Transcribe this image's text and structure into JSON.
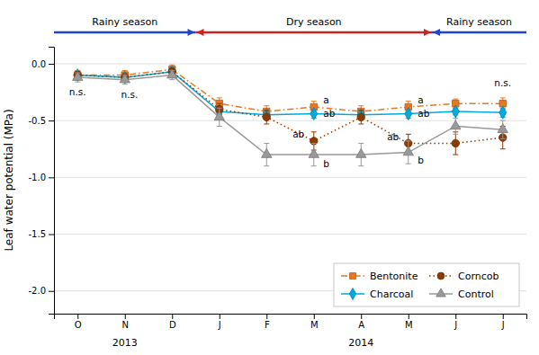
{
  "chart_data": {
    "type": "line",
    "y_label": "Leaf water potential (MPa)",
    "categories": [
      "O",
      "N",
      "D",
      "J",
      "F",
      "M",
      "A",
      "M",
      "J",
      "J"
    ],
    "series": [
      {
        "name": "Bentonite",
        "color": "#E87722",
        "marker": "square",
        "line_style": "dashdot",
        "values": [
          -0.1,
          -0.1,
          -0.05,
          -0.35,
          -0.42,
          -0.38,
          -0.42,
          -0.38,
          -0.35,
          -0.35
        ],
        "errors": [
          0.04,
          0.04,
          0.04,
          0.05,
          0.05,
          0.05,
          0.05,
          0.05,
          0.04,
          0.05
        ]
      },
      {
        "name": "Charcoal",
        "color": "#00AADD",
        "marker": "diamond",
        "line_style": "solid",
        "values": [
          -0.1,
          -0.12,
          -0.07,
          -0.42,
          -0.45,
          -0.44,
          -0.45,
          -0.44,
          -0.42,
          -0.43
        ],
        "errors": [
          0.03,
          0.03,
          0.03,
          0.04,
          0.04,
          0.04,
          0.04,
          0.04,
          0.03,
          0.04
        ]
      },
      {
        "name": "Corncob",
        "color": "#8B3A00",
        "marker": "circle",
        "line_style": "dotted",
        "values": [
          -0.1,
          -0.12,
          -0.07,
          -0.4,
          -0.47,
          -0.68,
          -0.47,
          -0.7,
          -0.7,
          -0.65
        ],
        "errors": [
          0.03,
          0.03,
          0.03,
          0.05,
          0.06,
          0.08,
          0.06,
          0.08,
          0.1,
          0.1
        ]
      },
      {
        "name": "Control",
        "color": "#999999",
        "marker": "triangle",
        "line_style": "solid",
        "values": [
          -0.12,
          -0.14,
          -0.1,
          -0.47,
          -0.8,
          -0.8,
          -0.8,
          -0.78,
          -0.55,
          -0.58
        ],
        "errors": [
          0.04,
          0.04,
          0.04,
          0.08,
          0.1,
          0.1,
          0.1,
          0.1,
          0.07,
          0.08
        ]
      }
    ],
    "ylim": [
      -2.2,
      0.15
    ],
    "yticks": [
      {
        "value": 0,
        "label": "0.0"
      },
      -0.5,
      {
        "value": -1,
        "label": "-1.0"
      },
      -1.5,
      {
        "value": -2,
        "label": "-2.0"
      }
    ],
    "grid": true,
    "legend": "lower right",
    "annotations": [
      {
        "text": "2013",
        "x": 1
      },
      {
        "text": "2014",
        "x": 6
      },
      {
        "text": "n.s.",
        "x": 0,
        "y": -0.2
      },
      {
        "text": "n.s.",
        "x": 1.1,
        "y": -0.22
      },
      {
        "text": "n.s.",
        "x": 9,
        "y": -0.22
      },
      {
        "text": "a",
        "x": 5.2,
        "y": -0.32
      },
      {
        "text": "ab",
        "x": 5.2,
        "y": -0.44
      },
      {
        "text": "ab",
        "x": 4.8,
        "y": -0.62
      },
      {
        "text": "b",
        "x": 5.2,
        "y": -0.88
      },
      {
        "text": "a",
        "x": 7.2,
        "y": -0.32
      },
      {
        "text": "ab",
        "x": 7.2,
        "y": -0.44
      },
      {
        "text": "ab",
        "x": 6.8,
        "y": -0.64
      },
      {
        "text": "b",
        "x": 7.2,
        "y": -0.85
      },
      {
        "text": "Rainy season",
        "x": [
          -0.5,
          2.5
        ],
        "color": "#2244CC"
      },
      {
        "text": "Dry season",
        "x": [
          2.5,
          7.5
        ],
        "color": "#CC2222"
      },
      {
        "text": "Rainy season",
        "x": [
          7.5,
          9.5
        ],
        "color": "#2244CC"
      }
    ]
  }
}
